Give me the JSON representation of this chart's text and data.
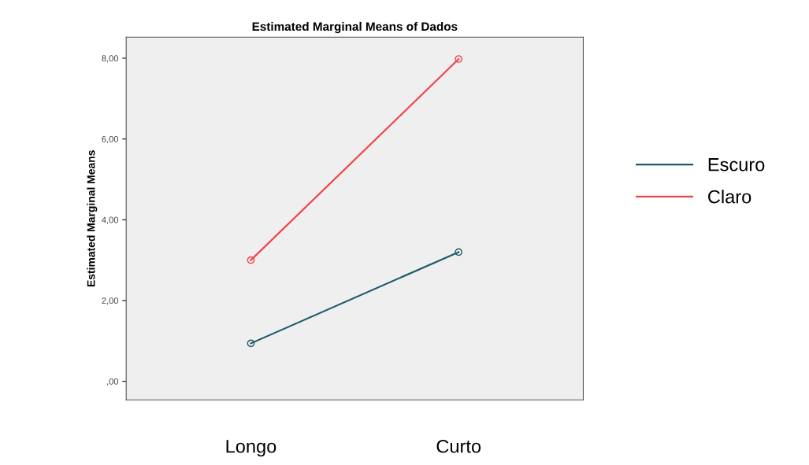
{
  "chart_data": {
    "type": "line",
    "title": "Estimated Marginal Means of Dados",
    "ylabel": "Estimated Marginal Means",
    "categories": [
      "Longo",
      "Curto"
    ],
    "series": [
      {
        "name": "Escuro",
        "color": "#1f5a6a",
        "values": [
          0.94,
          3.2
        ]
      },
      {
        "name": "Claro",
        "color": "#f0464a",
        "values": [
          3.0,
          7.98
        ]
      }
    ],
    "ylim": [
      -0.46,
      8.52
    ],
    "yticks": [
      {
        "value": 0,
        "label": ",00"
      },
      {
        "value": 2,
        "label": "2,00"
      },
      {
        "value": 4,
        "label": "4,00"
      },
      {
        "value": 6,
        "label": "6,00"
      },
      {
        "value": 8,
        "label": "8,00"
      }
    ],
    "marker": "circle",
    "line_style": "solid",
    "legend": "right",
    "grid": false
  }
}
